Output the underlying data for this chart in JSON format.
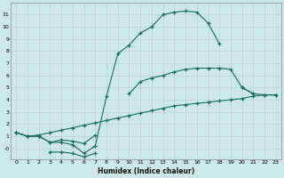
{
  "xlabel": "Humidex (Indice chaleur)",
  "bg_color": "#cce8e8",
  "line_color": "#1a6b5a",
  "x_values": [
    0,
    1,
    2,
    3,
    4,
    5,
    6,
    7,
    8,
    9,
    10,
    11,
    12,
    13,
    14,
    15,
    16,
    17,
    18,
    19,
    20,
    21,
    22,
    23
  ],
  "series_upper": [
    1.3,
    1.0,
    1.0,
    0.5,
    0.5,
    0.3,
    -0.4,
    0.2,
    4.3,
    7.8,
    8.5,
    9.5,
    10.0,
    11.0,
    11.2,
    11.3,
    11.2,
    10.3,
    8.6,
    null,
    null,
    null,
    null,
    null
  ],
  "series_mid": [
    1.3,
    1.0,
    1.0,
    0.5,
    0.7,
    0.6,
    0.4,
    1.1,
    null,
    null,
    4.5,
    5.5,
    5.8,
    6.0,
    6.3,
    6.5,
    6.6,
    6.6,
    6.6,
    6.5,
    5.0,
    4.5,
    null,
    null
  ],
  "series_low": [
    1.3,
    1.0,
    1.1,
    1.3,
    1.5,
    1.7,
    1.9,
    2.1,
    2.3,
    2.5,
    2.7,
    2.9,
    3.1,
    3.3,
    3.5,
    3.6,
    3.7,
    3.8,
    3.9,
    4.0,
    4.1,
    4.3,
    4.4,
    4.4
  ],
  "series_dip": [
    null,
    null,
    null,
    -0.3,
    -0.3,
    -0.4,
    -0.7,
    -0.4,
    null,
    null,
    null,
    null,
    null,
    null,
    null,
    null,
    null,
    null,
    null,
    null,
    null,
    null,
    null,
    null
  ],
  "series_tail": [
    null,
    null,
    null,
    null,
    null,
    null,
    null,
    null,
    null,
    null,
    null,
    null,
    null,
    null,
    null,
    null,
    null,
    null,
    null,
    null,
    5.0,
    4.5,
    4.4,
    4.4
  ],
  "ylim": [
    -0.9,
    12.0
  ],
  "xlim": [
    -0.5,
    23.5
  ],
  "yticks": [
    0,
    1,
    2,
    3,
    4,
    5,
    6,
    7,
    8,
    9,
    10,
    11
  ],
  "ytick_labels": [
    "-0",
    "1",
    "2",
    "3",
    "4",
    "5",
    "6",
    "7",
    "8",
    "9",
    "10",
    "11"
  ],
  "xticks": [
    0,
    1,
    2,
    3,
    4,
    5,
    6,
    7,
    8,
    9,
    10,
    11,
    12,
    13,
    14,
    15,
    16,
    17,
    18,
    19,
    20,
    21,
    22,
    23
  ],
  "grid_color_major": "#c0d0d0",
  "grid_color_minor": "#d8e8e8",
  "spine_color": "#888888"
}
